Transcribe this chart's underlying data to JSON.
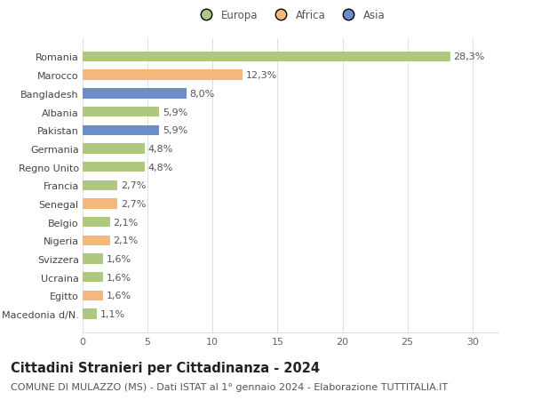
{
  "countries": [
    "Macedonia d/N.",
    "Egitto",
    "Ucraina",
    "Svizzera",
    "Nigeria",
    "Belgio",
    "Senegal",
    "Francia",
    "Regno Unito",
    "Germania",
    "Pakistan",
    "Albania",
    "Bangladesh",
    "Marocco",
    "Romania"
  ],
  "values": [
    1.1,
    1.6,
    1.6,
    1.6,
    2.1,
    2.1,
    2.7,
    2.7,
    4.8,
    4.8,
    5.9,
    5.9,
    8.0,
    12.3,
    28.3
  ],
  "continents": [
    "Europa",
    "Africa",
    "Europa",
    "Europa",
    "Africa",
    "Europa",
    "Africa",
    "Europa",
    "Europa",
    "Europa",
    "Asia",
    "Europa",
    "Asia",
    "Africa",
    "Europa"
  ],
  "labels": [
    "1,1%",
    "1,6%",
    "1,6%",
    "1,6%",
    "2,1%",
    "2,1%",
    "2,7%",
    "2,7%",
    "4,8%",
    "4,8%",
    "5,9%",
    "5,9%",
    "8,0%",
    "12,3%",
    "28,3%"
  ],
  "colors": {
    "Europa": "#aec880",
    "Africa": "#f5b87a",
    "Asia": "#6b8ecb"
  },
  "title": "Cittadini Stranieri per Cittadinanza - 2024",
  "subtitle": "COMUNE DI MULAZZO (MS) - Dati ISTAT al 1° gennaio 2024 - Elaborazione TUTTITALIA.IT",
  "xlim": [
    0,
    32
  ],
  "xticks": [
    0,
    5,
    10,
    15,
    20,
    25,
    30
  ],
  "background_color": "#ffffff",
  "grid_color": "#e0e0e0",
  "bar_height": 0.55,
  "label_fontsize": 8,
  "title_fontsize": 10.5,
  "subtitle_fontsize": 8,
  "ytick_fontsize": 8,
  "xtick_fontsize": 8,
  "legend_fontsize": 8.5
}
